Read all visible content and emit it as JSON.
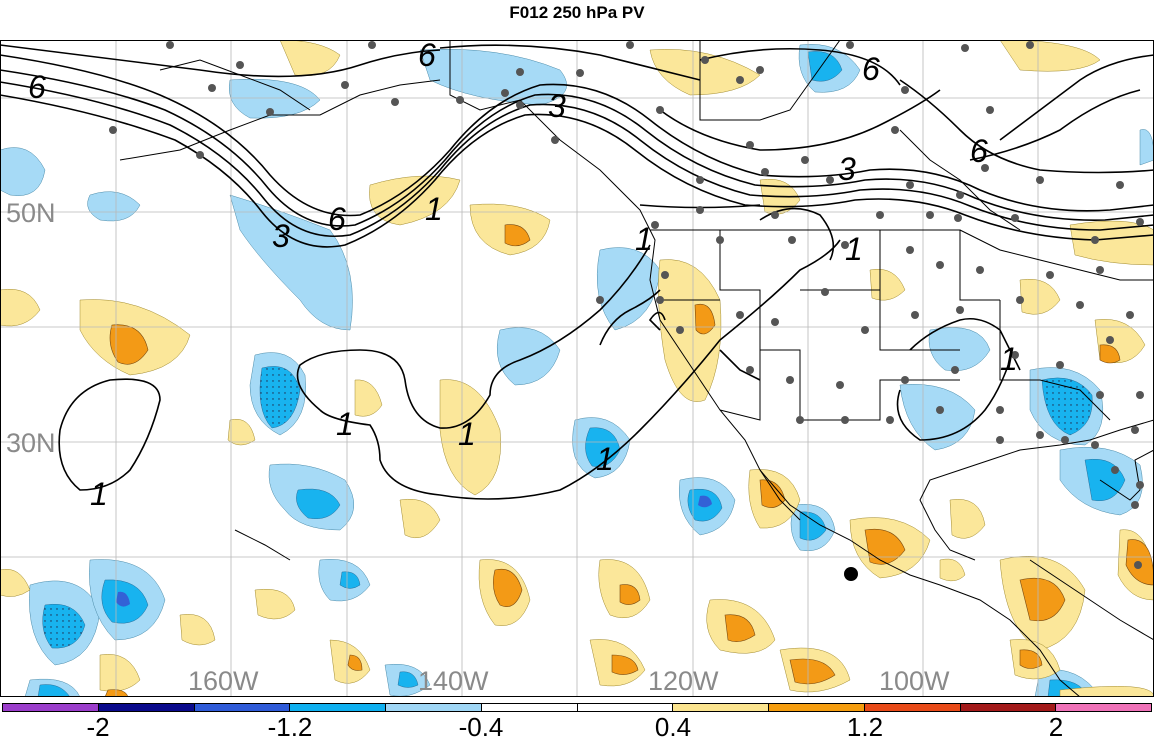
{
  "title": "F012 250 hPa PV",
  "lon_labels": [
    "160W",
    "140W",
    "120W",
    "100W"
  ],
  "lat_labels": [
    "50N",
    "30N"
  ],
  "contour_labels": [
    "6",
    "6",
    "6",
    "6",
    "3",
    "3",
    "3",
    "6",
    "1",
    "1",
    "1",
    "1",
    "1",
    "1",
    "1",
    "1"
  ],
  "colorbar": {
    "colors": [
      "#9b3dcb",
      "#0a0a8c",
      "#2f5bd8",
      "#0fb0f0",
      "#9fd6f5",
      "#ffffff",
      "#ffffff",
      "#fbe48f",
      "#f59d0f",
      "#e84a18",
      "#a31a1a",
      "#ef72b8"
    ],
    "tick_labels": [
      "-2",
      "-1.2",
      "-0.4",
      "0.4",
      "1.2",
      "2"
    ]
  },
  "shading_colors": {
    "light_blue": "#a6daf6",
    "mid_blue": "#18b3ef",
    "dark_blue": "#3361d6",
    "light_yellow": "#fbe79a",
    "orange": "#f39a16"
  }
}
